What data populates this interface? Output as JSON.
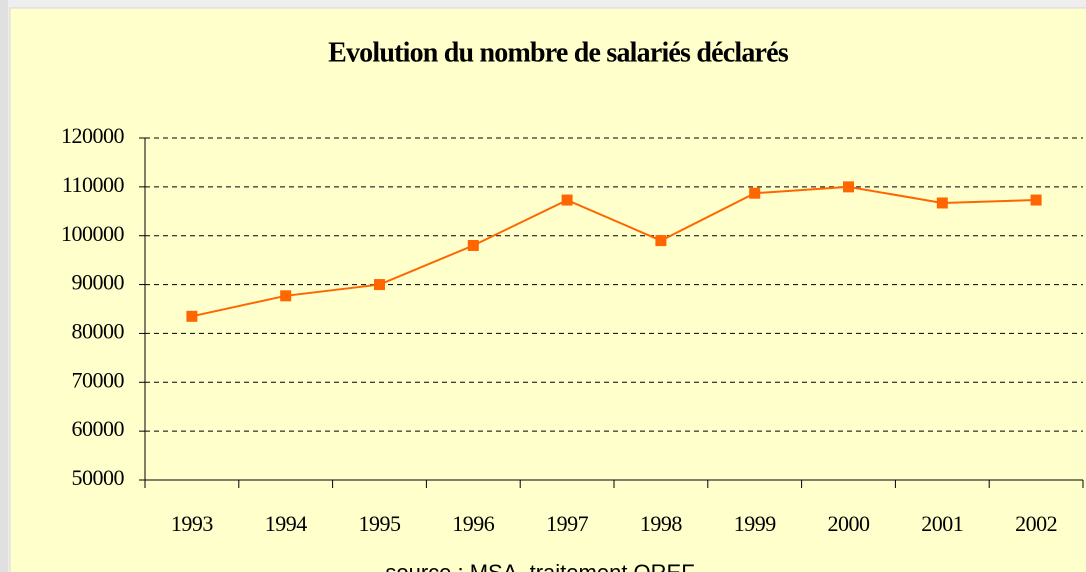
{
  "chart_data": {
    "type": "line",
    "title": "Evolution du nombre de salariés déclarés",
    "categories": [
      "1993",
      "1994",
      "1995",
      "1996",
      "1997",
      "1998",
      "1999",
      "2000",
      "2001",
      "2002"
    ],
    "series": [
      {
        "name": "salariés déclarés",
        "color": "#ff6600",
        "values": [
          83500,
          87700,
          90000,
          98000,
          107300,
          99000,
          108700,
          110000,
          106700,
          107300
        ]
      }
    ],
    "ylim": [
      50000,
      120000
    ],
    "yticks": [
      50000,
      60000,
      70000,
      80000,
      90000,
      100000,
      110000,
      120000
    ],
    "grid": true,
    "source": "source : MSA, traitement OREF"
  }
}
